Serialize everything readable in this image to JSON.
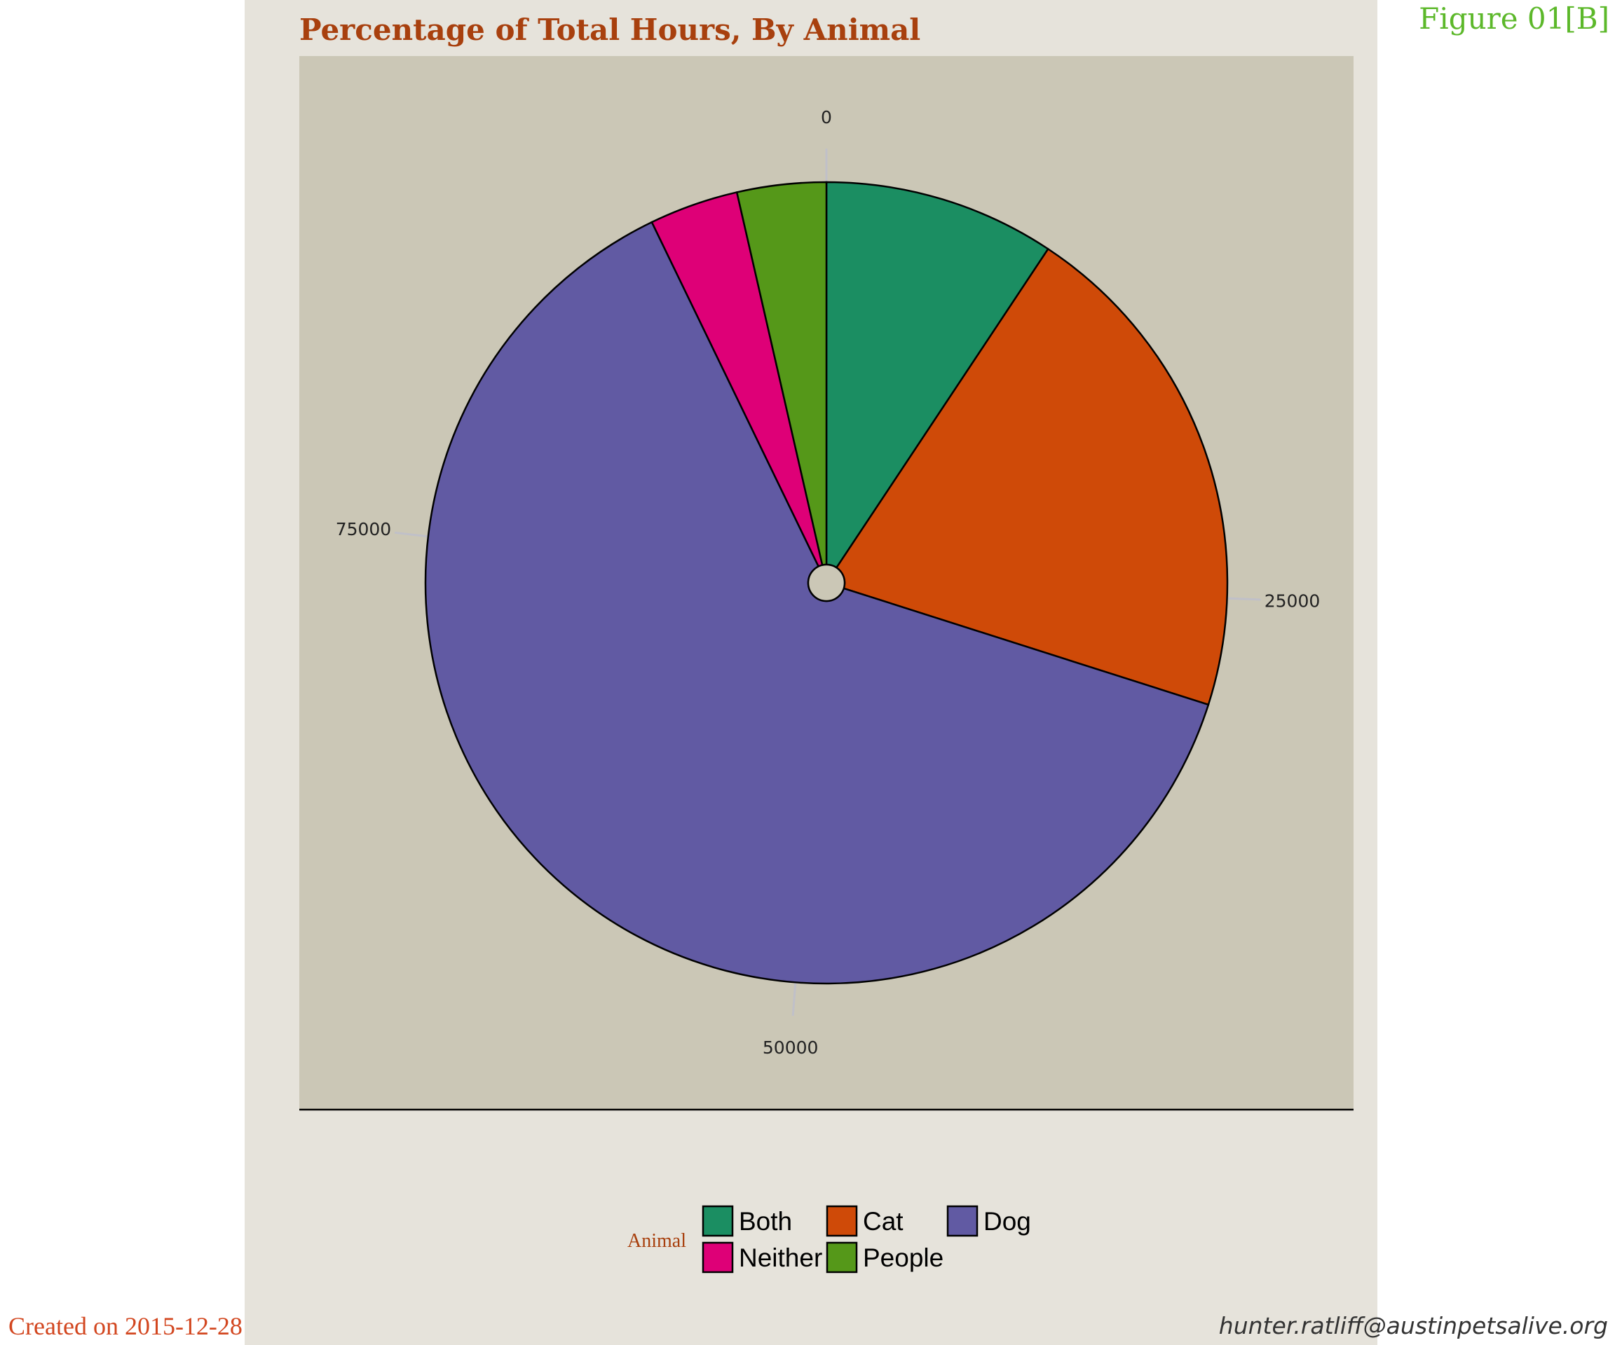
{
  "title": "Percentage of Total Hours, By Animal",
  "figure_label": "Figure 01[B]",
  "created": "Created on 2015-12-28",
  "email": "hunter.ratliff@austinpetsalive.org",
  "chart_data": {
    "type": "pie",
    "title": "Percentage of Total Hours, By Animal",
    "theta_axis": {
      "ticks": [
        0,
        25000,
        50000,
        75000
      ],
      "total": 97600
    },
    "legend_title": "Animal",
    "legend_position": "bottom",
    "slices": [
      {
        "label": "Both",
        "value": 9100,
        "color": "#1b8e62"
      },
      {
        "label": "Cat",
        "value": 20100,
        "color": "#cf4a08"
      },
      {
        "label": "Dog",
        "value": 61400,
        "color": "#615aa3"
      },
      {
        "label": "Neither",
        "value": 3500,
        "color": "#de0077"
      },
      {
        "label": "People",
        "value": 3500,
        "color": "#559819"
      }
    ],
    "legend_rows": [
      [
        "Both",
        "Cat",
        "Dog"
      ],
      [
        "Neither",
        "People"
      ]
    ],
    "panel_background": "#cbc7b6",
    "plot_background": "#e6e3db"
  }
}
